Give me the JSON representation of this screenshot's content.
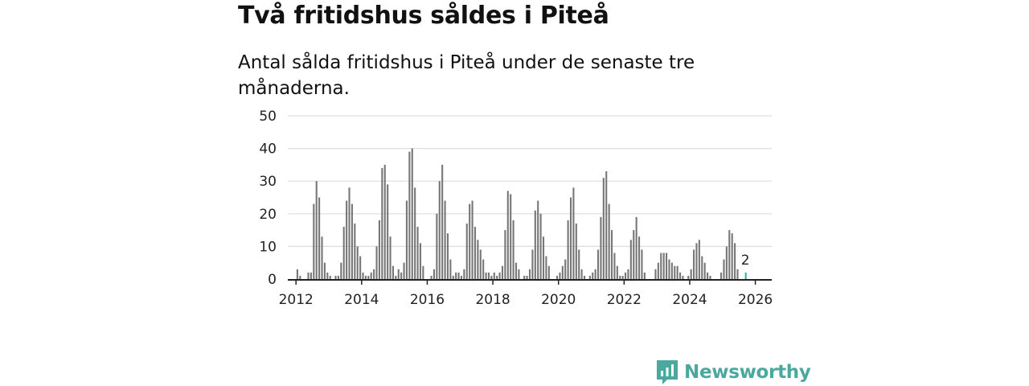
{
  "header": {
    "title": "Två fritidshus såldes i Piteå",
    "subtitle": "Antal sålda fritidshus i Piteå under de senaste tre månaderna."
  },
  "brand": {
    "name": "Newsworthy",
    "color": "#4aa89e"
  },
  "colors": {
    "bar": "#777777",
    "highlight": "#33b3a6",
    "grid": "#dddddd",
    "axis": "#222222"
  },
  "chart_data": {
    "type": "bar",
    "title": "Två fritidshus såldes i Piteå",
    "subtitle": "Antal sålda fritidshus i Piteå under de senaste tre månaderna.",
    "xlabel": "",
    "ylabel": "",
    "ylim": [
      0,
      50
    ],
    "yticks": [
      0,
      10,
      20,
      30,
      40,
      50
    ],
    "xticks": [
      {
        "label": "2012",
        "x": 2012
      },
      {
        "label": "2014",
        "x": 2014
      },
      {
        "label": "2016",
        "x": 2016
      },
      {
        "label": "2018",
        "x": 2018
      },
      {
        "label": "2020",
        "x": 2020
      },
      {
        "label": "2022",
        "x": 2022
      },
      {
        "label": "2024",
        "x": 2024
      },
      {
        "label": "2026",
        "x": 2026
      }
    ],
    "x_start": 2011.75,
    "x_end": 2026.5,
    "points_per_year": 12,
    "values": [
      0,
      0,
      0,
      3,
      1,
      0,
      0,
      2,
      2,
      23,
      30,
      25,
      13,
      5,
      2,
      1,
      0,
      1,
      1,
      5,
      16,
      24,
      28,
      23,
      17,
      10,
      7,
      2,
      1,
      1,
      2,
      3,
      10,
      18,
      34,
      35,
      29,
      13,
      4,
      1,
      3,
      2,
      5,
      24,
      39,
      40,
      28,
      16,
      11,
      4,
      0,
      0,
      1,
      3,
      20,
      30,
      35,
      24,
      14,
      6,
      1,
      2,
      2,
      1,
      3,
      17,
      23,
      24,
      16,
      12,
      9,
      6,
      2,
      2,
      1,
      2,
      1,
      2,
      4,
      15,
      27,
      26,
      18,
      5,
      3,
      0,
      1,
      1,
      3,
      9,
      21,
      24,
      20,
      13,
      7,
      4,
      0,
      0,
      1,
      2,
      4,
      6,
      18,
      25,
      28,
      17,
      9,
      3,
      1,
      0,
      1,
      2,
      3,
      9,
      19,
      31,
      33,
      23,
      15,
      8,
      4,
      1,
      1,
      2,
      3,
      12,
      15,
      19,
      13,
      9,
      2,
      0,
      0,
      0,
      3,
      5,
      8,
      8,
      8,
      6,
      5,
      4,
      4,
      2,
      1,
      0,
      1,
      3,
      9,
      11,
      12,
      7,
      5,
      2,
      1,
      0,
      0,
      0,
      2,
      6,
      10,
      15,
      14,
      11,
      3,
      0,
      0,
      2
    ],
    "highlight_last": true,
    "annotation": {
      "label": "2",
      "value": 2
    }
  }
}
